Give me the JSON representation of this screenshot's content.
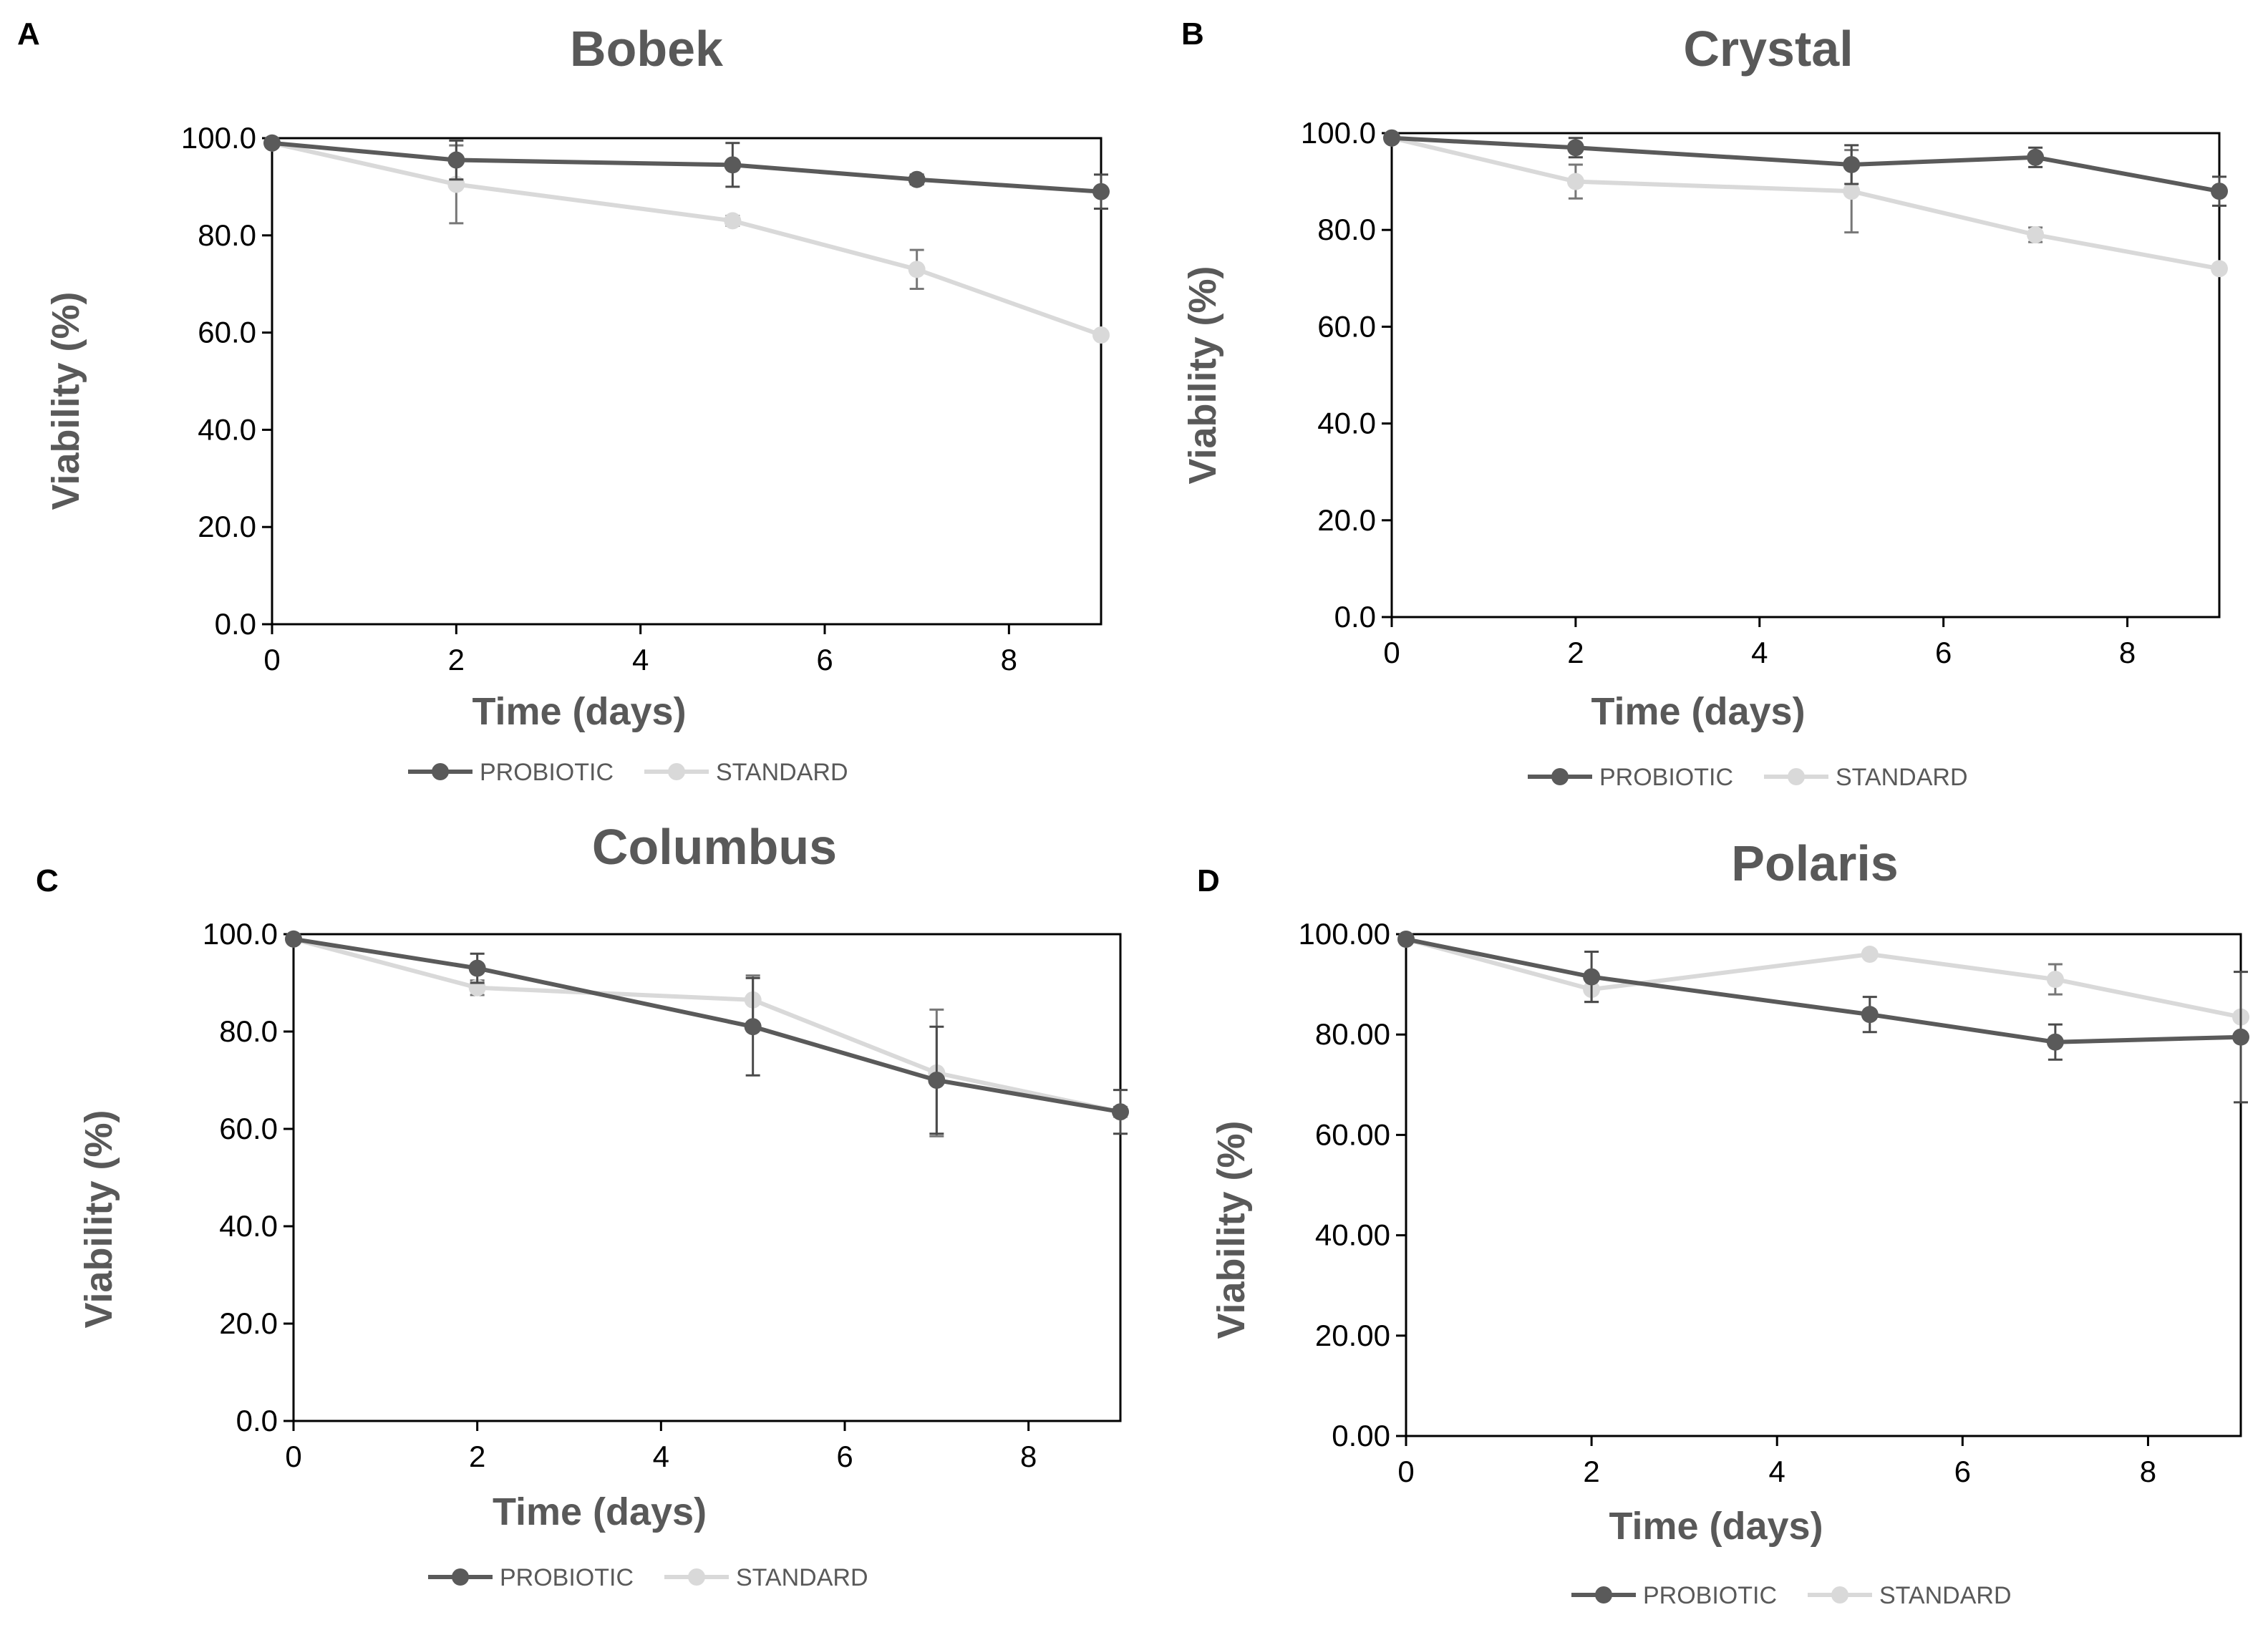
{
  "figure": {
    "colors": {
      "probiotic": "#5a5a5a",
      "standard": "#d9d9d9",
      "axis": "#000000",
      "text": "#595959"
    }
  },
  "chart_data": [
    {
      "panel": "A",
      "type": "line",
      "title": "Bobek",
      "xlabel": "Time (days)",
      "ylabel": "Viability (%)",
      "xlim": [
        0,
        9
      ],
      "ylim": [
        0,
        100
      ],
      "xticks": [
        "0",
        "2",
        "4",
        "6",
        "8"
      ],
      "yticks": [
        "0.0",
        "20.0",
        "40.0",
        "60.0",
        "80.0",
        "100.0"
      ],
      "x": [
        0,
        2,
        5,
        7,
        9
      ],
      "legend_position": "bottom",
      "series": [
        {
          "name": "PROBIOTIC",
          "color": "#5a5a5a",
          "values": [
            99.0,
            95.5,
            94.5,
            91.5,
            89.0
          ],
          "errors": [
            0.5,
            4.0,
            4.5,
            1.0,
            3.5
          ]
        },
        {
          "name": "STANDARD",
          "color": "#d9d9d9",
          "values": [
            99.0,
            90.5,
            83.0,
            73.0,
            59.5
          ],
          "errors": [
            0.5,
            8.0,
            1.0,
            4.0,
            0.5
          ]
        }
      ]
    },
    {
      "panel": "B",
      "type": "line",
      "title": "Crystal",
      "xlabel": "Time (days)",
      "ylabel": "Viability (%)",
      "xlim": [
        0,
        9
      ],
      "ylim": [
        0,
        100
      ],
      "xticks": [
        "0",
        "2",
        "4",
        "6",
        "8"
      ],
      "yticks": [
        "0.0",
        "20.0",
        "40.0",
        "60.0",
        "80.0",
        "100.0"
      ],
      "x": [
        0,
        2,
        5,
        7,
        9
      ],
      "legend_position": "bottom",
      "series": [
        {
          "name": "PROBIOTIC",
          "color": "#5a5a5a",
          "values": [
            99.0,
            97.0,
            93.5,
            95.0,
            88.0
          ],
          "errors": [
            0.5,
            2.0,
            4.0,
            2.0,
            3.0
          ]
        },
        {
          "name": "STANDARD",
          "color": "#d9d9d9",
          "values": [
            99.0,
            90.0,
            88.0,
            79.0,
            72.0
          ],
          "errors": [
            0.5,
            3.5,
            8.5,
            1.5,
            0.5
          ]
        }
      ]
    },
    {
      "panel": "C",
      "type": "line",
      "title": "Columbus",
      "xlabel": "Time (days)",
      "ylabel": "Viability (%)",
      "xlim": [
        0,
        9
      ],
      "ylim": [
        0,
        100
      ],
      "xticks": [
        "0",
        "2",
        "4",
        "6",
        "8"
      ],
      "yticks": [
        "0.0",
        "20.0",
        "40.0",
        "60.0",
        "80.0",
        "100.0"
      ],
      "x": [
        0,
        2,
        5,
        7,
        9
      ],
      "legend_position": "bottom",
      "series": [
        {
          "name": "PROBIOTIC",
          "color": "#5a5a5a",
          "values": [
            99.0,
            93.0,
            81.0,
            70.0,
            63.5
          ],
          "errors": [
            0.5,
            3.0,
            10.0,
            11.0,
            4.5
          ]
        },
        {
          "name": "STANDARD",
          "color": "#d9d9d9",
          "values": [
            99.0,
            89.0,
            86.5,
            71.5,
            63.5
          ],
          "errors": [
            0.5,
            1.5,
            5.0,
            13.0,
            1.0
          ]
        }
      ]
    },
    {
      "panel": "D",
      "type": "line",
      "title": "Polaris",
      "xlabel": "Time (days)",
      "ylabel": "Viability (%)",
      "xlim": [
        0,
        9
      ],
      "ylim": [
        0,
        100
      ],
      "xticks": [
        "0",
        "2",
        "4",
        "6",
        "8"
      ],
      "yticks": [
        "0.00",
        "20.00",
        "40.00",
        "60.00",
        "80.00",
        "100.00"
      ],
      "x": [
        0,
        2,
        5,
        7,
        9
      ],
      "legend_position": "bottom",
      "series": [
        {
          "name": "PROBIOTIC",
          "color": "#5a5a5a",
          "values": [
            99.0,
            91.5,
            84.0,
            78.5,
            79.5
          ],
          "errors": [
            0.5,
            5.0,
            3.5,
            3.5,
            13.0
          ]
        },
        {
          "name": "STANDARD",
          "color": "#d9d9d9",
          "values": [
            99.0,
            89.0,
            96.0,
            91.0,
            83.5
          ],
          "errors": [
            0.5,
            2.5,
            0.5,
            3.0,
            0.5
          ]
        }
      ]
    }
  ]
}
